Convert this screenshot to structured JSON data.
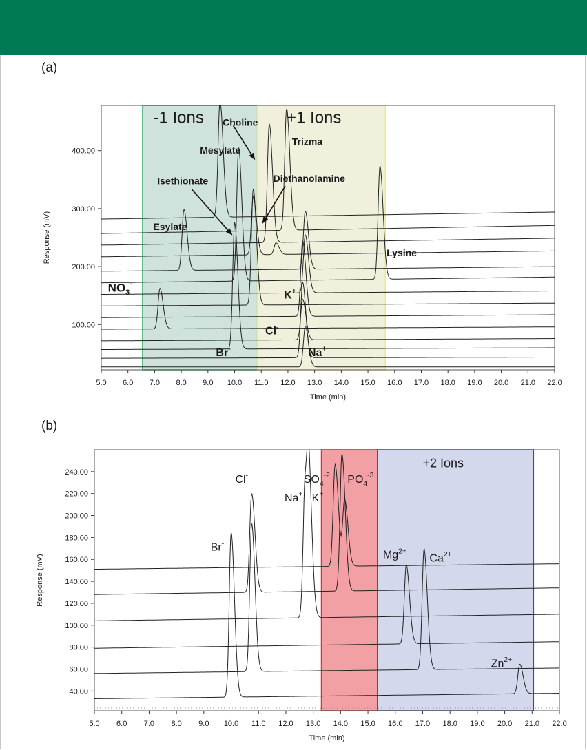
{
  "header": {
    "color": "#007a55"
  },
  "panels": {
    "a_label": "(a)",
    "b_label": "(b)"
  },
  "chart_data": [
    {
      "type": "line",
      "panel": "(a)",
      "xlabel": "Time (min)",
      "ylabel": "Response (mV)",
      "xlim": [
        5.0,
        22.0
      ],
      "ylim": [
        22,
        478
      ],
      "xticks": [
        "5.0",
        "6.0",
        "7.0",
        "8.0",
        "9.0",
        "10.0",
        "11.0",
        "12.0",
        "13.0",
        "14.0",
        "15.0",
        "16.0",
        "17.0",
        "18.0",
        "19.0",
        "20.0",
        "21.0",
        "22.0"
      ],
      "yticks": [
        "100.00",
        "200.00",
        "300.00",
        "400.00"
      ],
      "ytick_values": [
        100,
        200,
        300,
        400
      ],
      "regions": [
        {
          "label": "-1 Ions",
          "x0": 6.55,
          "x1": 10.85,
          "fill": "#d0e2dc",
          "stroke": "#36b062"
        },
        {
          "label": "+1 Ions",
          "x0": 10.85,
          "x1": 15.65,
          "fill": "#f1f0dc",
          "stroke": "#efe89c"
        }
      ],
      "series": [
        {
          "base": 27,
          "slope": 0,
          "peaks": [
            [
              12.65,
              70
            ]
          ]
        },
        {
          "base": 42,
          "slope": 2,
          "peaks": [
            [
              12.55,
              130
            ]
          ]
        },
        {
          "base": 57,
          "slope": 3,
          "peaks": [
            [
              10.0,
              218
            ]
          ]
        },
        {
          "base": 72,
          "slope": 4,
          "peaks": [
            [
              12.55,
              70
            ]
          ]
        },
        {
          "base": 92,
          "slope": 4,
          "peaks": [
            [
              7.2,
              70
            ]
          ]
        },
        {
          "base": 112,
          "slope": 5,
          "peaks": [
            [
              12.55,
              130
            ]
          ]
        },
        {
          "base": 132,
          "slope": 5,
          "peaks": [
            [
              10.7,
              200
            ]
          ]
        },
        {
          "base": 152,
          "slope": 6,
          "peaks": [
            [
              12.65,
              100
            ]
          ]
        },
        {
          "base": 172,
          "slope": 10,
          "peaks": [
            [
              10.15,
              230
            ],
            [
              15.45,
              195
            ]
          ]
        },
        {
          "base": 192,
          "slope": 8,
          "peaks": [
            [
              8.1,
              105
            ],
            [
              12.65,
              100
            ]
          ]
        },
        {
          "base": 217,
          "slope": 10,
          "peaks": [
            [
              10.7,
              100
            ],
            [
              11.55,
              20
            ]
          ]
        },
        {
          "base": 237,
          "slope": 12,
          "peaks": [
            [
              11.3,
              205
            ]
          ]
        },
        {
          "base": 257,
          "slope": 14,
          "peaks": [
            [
              11.95,
              210
            ]
          ]
        },
        {
          "base": 282,
          "slope": 12,
          "peaks": [
            [
              9.45,
              200
            ]
          ]
        }
      ],
      "annotations": [
        {
          "text": "-1 Ions",
          "x": 6.95,
          "y": 448,
          "size": 24,
          "bold": false
        },
        {
          "text": "+1 Ions",
          "x": 11.95,
          "y": 448,
          "size": 24,
          "bold": false
        },
        {
          "text": "Choline",
          "x": 9.55,
          "y": 443,
          "size": 14,
          "bold": true
        },
        {
          "text": "Trizma",
          "x": 12.15,
          "y": 410,
          "size": 14,
          "bold": true
        },
        {
          "text": "Mesylate",
          "x": 8.7,
          "y": 395,
          "size": 14,
          "bold": true
        },
        {
          "text": "Isethionate",
          "x": 7.1,
          "y": 342,
          "size": 14,
          "bold": true
        },
        {
          "text": "Diethanolamine",
          "x": 11.45,
          "y": 346,
          "size": 14,
          "bold": true
        },
        {
          "text": "Esylate",
          "x": 6.95,
          "y": 263,
          "size": 14,
          "bold": true
        },
        {
          "text": "Lysine",
          "x": 15.7,
          "y": 218,
          "size": 14,
          "bold": true
        },
        {
          "text": "K",
          "sup": "+",
          "x": 11.85,
          "y": 145,
          "size": 16,
          "bold": true
        },
        {
          "text": "Cl",
          "sup": "-",
          "x": 11.15,
          "y": 83,
          "size": 16,
          "bold": true
        },
        {
          "text": "Br",
          "sup": "-",
          "x": 9.3,
          "y": 46,
          "size": 16,
          "bold": true
        },
        {
          "text": "Na",
          "sup": "+",
          "x": 12.75,
          "y": 46,
          "size": 16,
          "bold": true
        }
      ],
      "no3_label": {
        "main": "NO",
        "sub": "3",
        "sup": "-",
        "x": 5.25,
        "y": 157
      },
      "arrows": [
        {
          "from": [
            9.95,
            443
          ],
          "to": [
            10.75,
            385
          ]
        },
        {
          "from": [
            8.4,
            333
          ],
          "to": [
            9.9,
            255
          ]
        },
        {
          "from": [
            11.9,
            339
          ],
          "to": [
            11.05,
            275
          ]
        }
      ]
    },
    {
      "type": "line",
      "panel": "(b)",
      "xlabel": "Time (min)",
      "ylabel": "Response (mV)",
      "xlim": [
        5.0,
        22.0
      ],
      "ylim": [
        22,
        260
      ],
      "xticks": [
        "5.0",
        "6.0",
        "7.0",
        "8.0",
        "9.0",
        "10.0",
        "11.0",
        "12.0",
        "13.0",
        "14.0",
        "15.0",
        "16.0",
        "17.0",
        "18.0",
        "19.0",
        "20.0",
        "21.0",
        "22.0"
      ],
      "yticks": [
        "40.00",
        "60.00",
        "80.00",
        "100.00",
        "120.00",
        "140.00",
        "160.00",
        "180.00",
        "200.00",
        "220.00",
        "240.00"
      ],
      "ytick_values": [
        40,
        60,
        80,
        100,
        120,
        140,
        160,
        180,
        200,
        220,
        240
      ],
      "regions": [
        {
          "label": "",
          "x0": 13.3,
          "x1": 15.35,
          "fill": "#f2a0a3",
          "stroke": "#e03030"
        },
        {
          "label": "+2 Ions",
          "x0": 15.35,
          "x1": 21.05,
          "fill": "#d4d8ec",
          "stroke": "#3c47a6"
        }
      ],
      "series": [
        {
          "base": 33,
          "slope": 5,
          "peaks": [
            [
              10.0,
              150
            ],
            [
              20.55,
              27
            ]
          ]
        },
        {
          "base": 56,
          "slope": 5,
          "peaks": [
            [
              10.75,
              135
            ],
            [
              17.05,
              110
            ]
          ]
        },
        {
          "base": 79,
          "slope": 6,
          "peaks": [
            [
              16.4,
              72
            ]
          ]
        },
        {
          "base": 104,
          "slope": 6,
          "peaks": [
            [
              12.7,
              120
            ],
            [
              12.85,
              100
            ]
          ]
        },
        {
          "base": 128,
          "slope": 6,
          "peaks": [
            [
              14.05,
              125
            ],
            [
              10.75,
              90
            ]
          ]
        },
        {
          "base": 151,
          "slope": 5,
          "peaks": [
            [
              13.8,
              93
            ],
            [
              14.15,
              60
            ]
          ]
        }
      ],
      "annotations": [
        {
          "text": "+2 Ions",
          "x": 17.0,
          "y": 244,
          "size": 18,
          "bold": false
        },
        {
          "text": "Cl",
          "sup": "-",
          "x": 10.15,
          "y": 230,
          "size": 16,
          "bold": false
        },
        {
          "text": "Na",
          "sup": "+",
          "x": 11.95,
          "y": 213,
          "size": 16,
          "bold": false
        },
        {
          "text": "K",
          "sup": "+",
          "x": 12.95,
          "y": 213,
          "size": 16,
          "bold": false
        },
        {
          "text": "Br",
          "sup": "-",
          "x": 9.25,
          "y": 168,
          "size": 16,
          "bold": false
        },
        {
          "text": "Mg",
          "sup": "2+",
          "x": 15.55,
          "y": 161,
          "size": 16,
          "bold": false
        },
        {
          "text": "Ca",
          "sup": "2+",
          "x": 17.25,
          "y": 158,
          "size": 16,
          "bold": false
        },
        {
          "text": "Zn",
          "sup": "2+",
          "x": 19.5,
          "y": 62,
          "size": 16,
          "bold": false
        }
      ],
      "ion_labels": [
        {
          "main": "SO",
          "sub": "4",
          "sup": "-2",
          "x": 12.65,
          "y": 230
        },
        {
          "main": "PO",
          "sub": "4",
          "sup": "-3",
          "x": 14.25,
          "y": 230
        }
      ]
    }
  ]
}
